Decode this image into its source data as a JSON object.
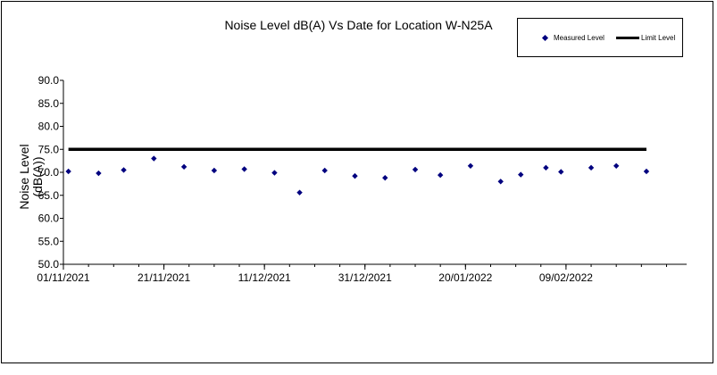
{
  "chart_data": {
    "type": "scatter",
    "title": "Noise Level dB(A) Vs Date for Location W-N25A",
    "xlabel": "",
    "ylabel": "Noise Level (dB(A))",
    "ylabel_lines": [
      "Noise Level",
      "(dB(A))"
    ],
    "ylim": [
      50.0,
      90.0
    ],
    "yticks": [
      "50.0",
      "55.0",
      "60.0",
      "65.0",
      "70.0",
      "75.0",
      "80.0",
      "85.0",
      "90.0"
    ],
    "xlim": [
      "2021-11-01",
      "2022-03-05"
    ],
    "xticks": [
      "01/11/2021",
      "21/11/2021",
      "11/12/2021",
      "31/12/2021",
      "20/01/2022",
      "09/02/2022"
    ],
    "legend": {
      "position": "top-right",
      "measured": "Measured Level",
      "limit": "Limit Level"
    },
    "colors": {
      "measured": "#00007f",
      "limit": "#000000"
    },
    "limit_level": 75.0,
    "series": [
      {
        "name": "Measured Level",
        "points": [
          {
            "x": "2021-11-02",
            "y": 70.2
          },
          {
            "x": "2021-11-08",
            "y": 69.8
          },
          {
            "x": "2021-11-13",
            "y": 70.5
          },
          {
            "x": "2021-11-19",
            "y": 73.0
          },
          {
            "x": "2021-11-25",
            "y": 71.2
          },
          {
            "x": "2021-12-01",
            "y": 70.4
          },
          {
            "x": "2021-12-07",
            "y": 70.7
          },
          {
            "x": "2021-12-13",
            "y": 69.9
          },
          {
            "x": "2021-12-18",
            "y": 65.6
          },
          {
            "x": "2021-12-23",
            "y": 70.4
          },
          {
            "x": "2021-12-29",
            "y": 69.2
          },
          {
            "x": "2022-01-04",
            "y": 68.8
          },
          {
            "x": "2022-01-10",
            "y": 70.6
          },
          {
            "x": "2022-01-15",
            "y": 69.4
          },
          {
            "x": "2022-01-21",
            "y": 71.4
          },
          {
            "x": "2022-01-27",
            "y": 68.0
          },
          {
            "x": "2022-01-31",
            "y": 69.5
          },
          {
            "x": "2022-02-05",
            "y": 71.0
          },
          {
            "x": "2022-02-08",
            "y": 70.1
          },
          {
            "x": "2022-02-14",
            "y": 71.0
          },
          {
            "x": "2022-02-19",
            "y": 71.4
          },
          {
            "x": "2022-02-25",
            "y": 70.2
          }
        ]
      },
      {
        "name": "Limit Level",
        "points": [
          {
            "x": "2021-11-02",
            "y": 75.0
          },
          {
            "x": "2022-02-25",
            "y": 75.0
          }
        ]
      }
    ]
  }
}
